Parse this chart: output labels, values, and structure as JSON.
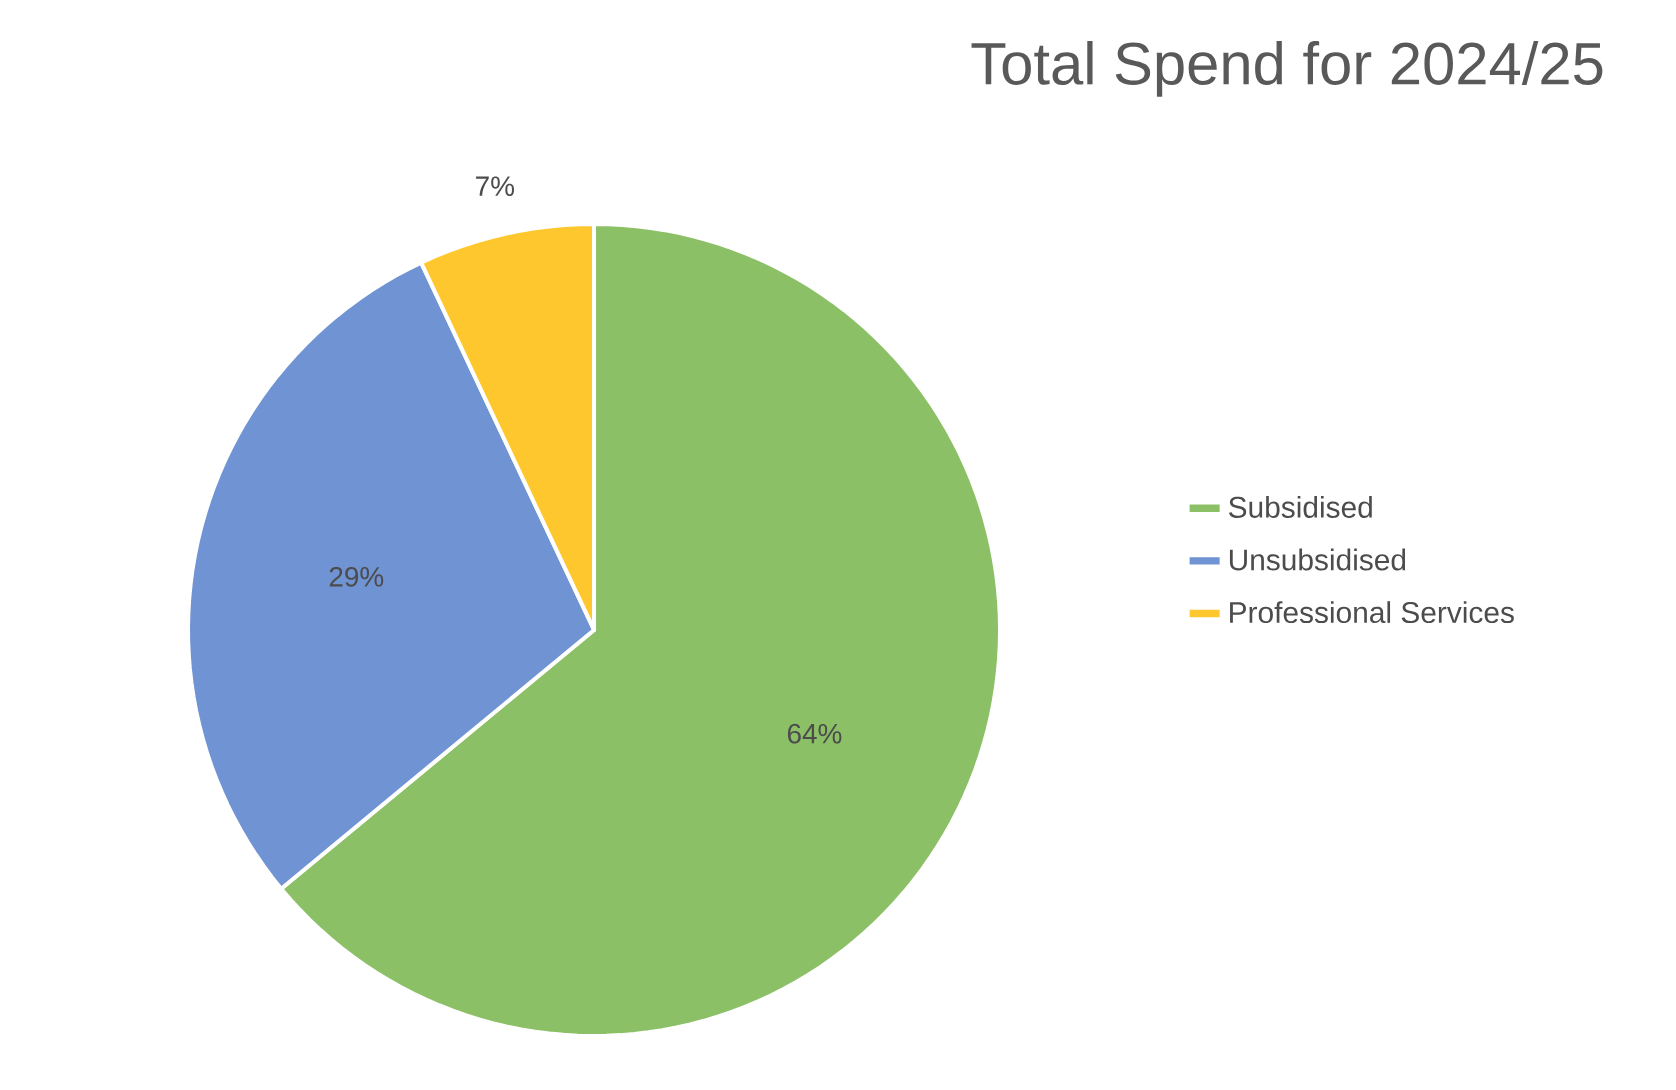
{
  "chart_data": {
    "type": "pie",
    "title": "Total Spend for 2024/25",
    "categories": [
      "Subsidised",
      "Unsubsidised",
      "Professional Services"
    ],
    "values": [
      64,
      29,
      7
    ],
    "colors": [
      "#8cc066",
      "#6f93d3",
      "#ffc72e"
    ],
    "value_labels": [
      "64%",
      "29%",
      "7%"
    ],
    "legend": "right"
  }
}
